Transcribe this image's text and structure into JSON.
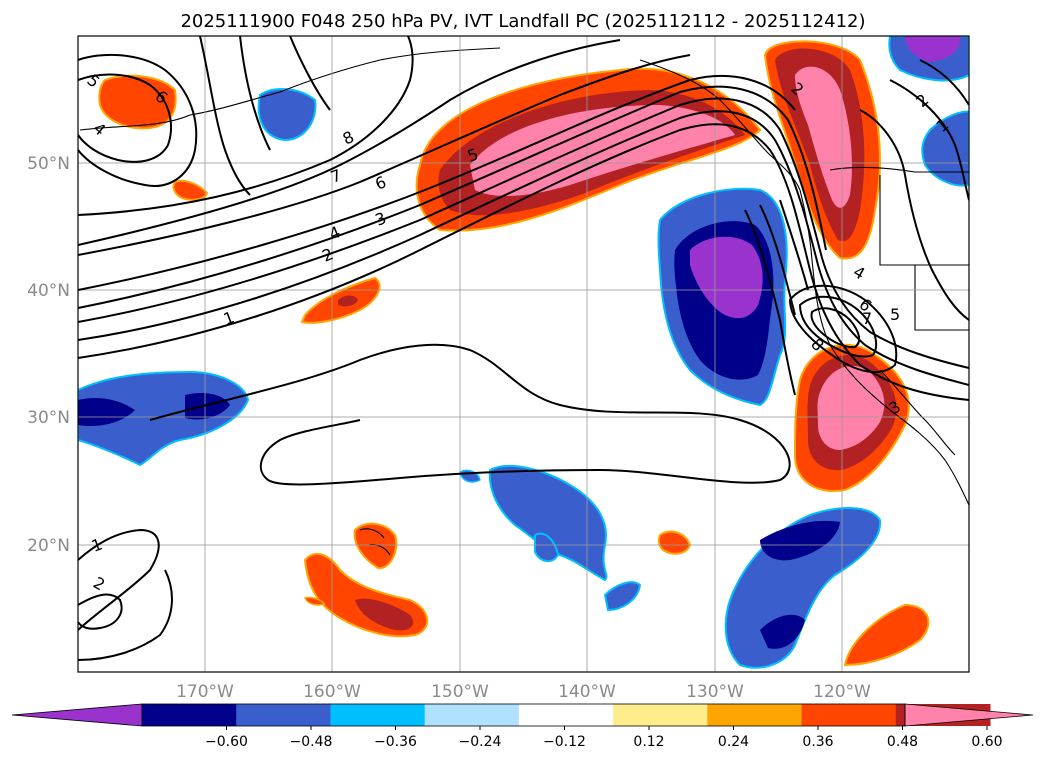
{
  "title": "2025111900 F048 250 hPa PV, IVT Landfall PC (2025112112 - 2025112412)",
  "map": {
    "lat_labels": [
      "20°N",
      "30°N",
      "40°N",
      "50°N"
    ],
    "lon_labels": [
      "170°W",
      "160°W",
      "150°W",
      "140°W",
      "130°W",
      "120°W"
    ],
    "grid": true
  },
  "colorbar": {
    "ticks": [
      "−0.60",
      "−0.48",
      "−0.36",
      "−0.24",
      "−0.12",
      "0.12",
      "0.24",
      "0.36",
      "0.48",
      "0.60"
    ],
    "colors": [
      "#9a32cd",
      "#00008b",
      "#3a5fcd",
      "#00bfff",
      "#b0e2ff",
      "#ffffff",
      "#ffec8b",
      "#ffa500",
      "#ff4500",
      "#b22222",
      "#ff82ab"
    ],
    "extend": "both"
  },
  "contour_labels": {
    "c1": "1",
    "c2": "2",
    "c3": "3",
    "c4": "4",
    "c5": "5",
    "c6": "6",
    "c7": "7",
    "c8": "8"
  }
}
